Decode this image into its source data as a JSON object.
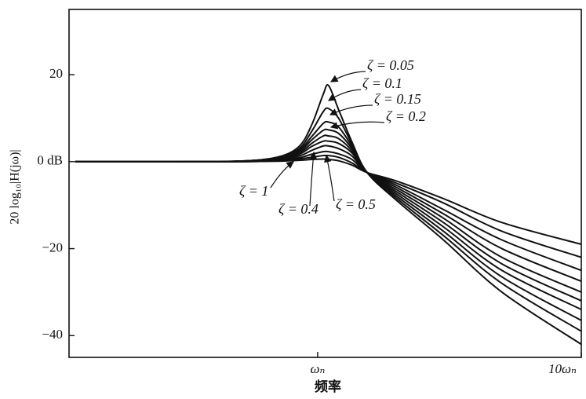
{
  "chart_data": {
    "type": "line",
    "xlabel": "频率",
    "ylabel": "20 log₁₀|H(jω)|",
    "xscale": "log",
    "xlim": [
      0.114,
      10
    ],
    "xticks": [
      {
        "value": 1,
        "label": "ωₙ"
      },
      {
        "value": 10,
        "label": "10ωₙ"
      }
    ],
    "ylim": [
      -45,
      35
    ],
    "yticks": [
      {
        "value": 20,
        "label": "20"
      },
      {
        "value": 0,
        "label": "0 dB"
      },
      {
        "value": -20,
        "label": "−20"
      },
      {
        "value": -40,
        "label": "−40"
      }
    ],
    "grid": false,
    "x": [
      0.12,
      0.3,
      0.5,
      0.7,
      0.85,
      0.95,
      1.05,
      1.1,
      1.2,
      1.35,
      1.54,
      2,
      3,
      5,
      10
    ],
    "series": [
      {
        "name": "ζ = 0.05",
        "color": "#111111",
        "values": [
          0,
          0,
          0.1,
          1.0,
          3.5,
          8.5,
          15.5,
          17.5,
          12,
          4.5,
          -2.5,
          -9,
          -18,
          -30,
          -42
        ]
      },
      {
        "name": "ζ = 0.1",
        "color": "#111111",
        "values": [
          0,
          0,
          0.1,
          0.9,
          3.0,
          7,
          11.5,
          12.2,
          10,
          4,
          -2.5,
          -8.5,
          -17,
          -28,
          -39
        ]
      },
      {
        "name": "ζ = 0.15",
        "color": "#111111",
        "values": [
          0,
          0,
          0.1,
          0.8,
          2.6,
          5.8,
          8.8,
          9.1,
          8,
          3.5,
          -2.5,
          -8,
          -16,
          -26.5,
          -36.5
        ]
      },
      {
        "name": "ζ = 0.2",
        "color": "#111111",
        "values": [
          0,
          0,
          0.1,
          0.7,
          2.3,
          5,
          7.2,
          7.3,
          6.5,
          3,
          -2.5,
          -7.5,
          -15,
          -25,
          -34
        ]
      },
      {
        "color": "#111111",
        "values": [
          0,
          0,
          0.1,
          0.6,
          2,
          4.2,
          5.9,
          5.9,
          5.3,
          2.5,
          -2.5,
          -7,
          -14,
          -23.5,
          -32
        ]
      },
      {
        "color": "#111111",
        "values": [
          0,
          0,
          0.1,
          0.5,
          1.7,
          3.5,
          4.7,
          4.7,
          4.2,
          2,
          -2.5,
          -6.5,
          -13,
          -22,
          -30
        ]
      },
      {
        "name": "ζ = 0.4",
        "color": "#111111",
        "values": [
          0,
          0,
          0.1,
          0.4,
          1.3,
          2.6,
          3.6,
          3.6,
          3.0,
          1.3,
          -2.5,
          -6,
          -12,
          -20,
          -27.5
        ]
      },
      {
        "name": "ζ = 0.5",
        "color": "#111111",
        "values": [
          0,
          0,
          0,
          0.3,
          0.9,
          1.7,
          2.3,
          2.3,
          1.8,
          0.5,
          -2.5,
          -5.5,
          -11,
          -18,
          -25
        ]
      },
      {
        "color": "#111111",
        "values": [
          0,
          0,
          0,
          0.2,
          0.6,
          1.0,
          1.4,
          1.4,
          1.0,
          -0.3,
          -2.5,
          -5,
          -9.5,
          -16,
          -22
        ]
      },
      {
        "name": "ζ = 1",
        "color": "#111111",
        "values": [
          0,
          0,
          0,
          0.1,
          0.3,
          0.5,
          0.6,
          0.5,
          0.2,
          -0.8,
          -2.5,
          -4.5,
          -8.5,
          -14,
          -19
        ]
      }
    ]
  }
}
